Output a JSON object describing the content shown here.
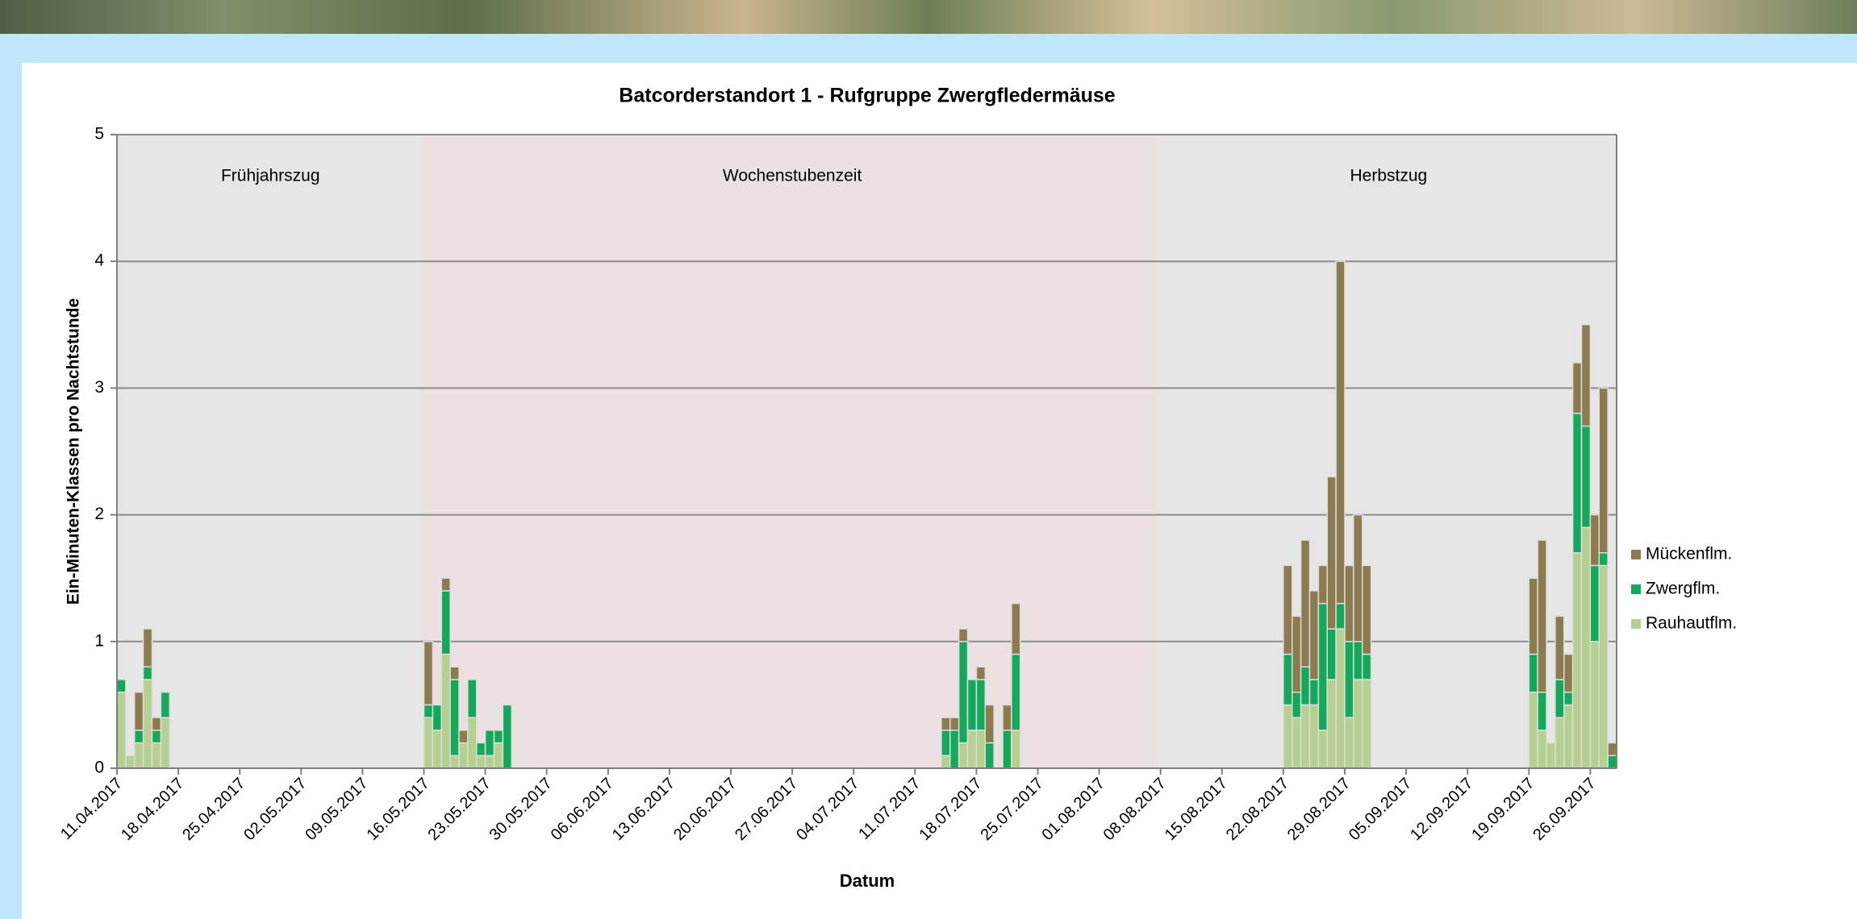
{
  "chart_data": {
    "type": "stacked_bar",
    "title": "Batcorderstandort 1 - Rufgruppe Zwergfledermäuse",
    "x_label": "Datum",
    "y_label": "Ein-Minuten-Klassen  pro Nachtstunde",
    "xlim": [
      "11.04.2017",
      "29.09.2017"
    ],
    "xticks": [
      "11.04.2017",
      "18.04.2017",
      "25.04.2017",
      "02.05.2017",
      "09.05.2017",
      "16.05.2017",
      "23.05.2017",
      "30.05.2017",
      "06.06.2017",
      "13.06.2017",
      "20.06.2017",
      "27.06.2017",
      "04.07.2017",
      "11.07.2017",
      "18.07.2017",
      "25.07.2017",
      "01.08.2017",
      "08.08.2017",
      "15.08.2017",
      "22.08.2017",
      "29.08.2017",
      "05.09.2017",
      "12.09.2017",
      "19.09.2017",
      "26.09.2017"
    ],
    "ylim": [
      0,
      5
    ],
    "yticks": [
      0,
      1,
      2,
      3,
      4,
      5
    ],
    "grid": true,
    "legend": "right",
    "periods": [
      {
        "label": "Frühjahrszug",
        "start": "11.04.2017",
        "end": "16.05.2017",
        "color": "#e6e6e6"
      },
      {
        "label": "Wochenstubenzeit",
        "start": "16.05.2017",
        "end": "08.08.2017",
        "color": "#ebe1e1"
      },
      {
        "label": "Herbstzug",
        "start": "08.08.2017",
        "end": "29.09.2017",
        "color": "#e6e6e6"
      }
    ],
    "x": [
      "11.04.2017",
      "12.04.2017",
      "13.04.2017",
      "14.04.2017",
      "15.04.2017",
      "16.04.2017",
      "16.05.2017",
      "17.05.2017",
      "18.05.2017",
      "19.05.2017",
      "20.05.2017",
      "21.05.2017",
      "22.05.2017",
      "23.05.2017",
      "24.05.2017",
      "25.05.2017",
      "14.07.2017",
      "15.07.2017",
      "16.07.2017",
      "17.07.2017",
      "18.07.2017",
      "19.07.2017",
      "21.07.2017",
      "22.07.2017",
      "22.08.2017",
      "23.08.2017",
      "24.08.2017",
      "25.08.2017",
      "26.08.2017",
      "27.08.2017",
      "28.08.2017",
      "29.08.2017",
      "30.08.2017",
      "31.08.2017",
      "19.09.2017",
      "20.09.2017",
      "21.09.2017",
      "22.09.2017",
      "23.09.2017",
      "24.09.2017",
      "25.09.2017",
      "26.09.2017",
      "27.09.2017",
      "28.09.2017"
    ],
    "series": [
      {
        "name": "Mückenflm.",
        "color": "#8b7b4f",
        "values": [
          0,
          0,
          0.3,
          0.3,
          0.1,
          0,
          0.5,
          0,
          0.1,
          0.1,
          0.1,
          0,
          0,
          0,
          0,
          0,
          0.1,
          0.1,
          0.1,
          0,
          0.1,
          0.3,
          0.2,
          0.4,
          0.7,
          0.6,
          1.0,
          0.7,
          0.3,
          1.2,
          2.7,
          0.6,
          1.0,
          0.7,
          0.6,
          1.2,
          0,
          0.5,
          0.3,
          0.4,
          0.8,
          0.4,
          1.3,
          0.1
        ]
      },
      {
        "name": "Zwergflm.",
        "color": "#14a85a",
        "values": [
          0.1,
          0,
          0.1,
          0.1,
          0.1,
          0.2,
          0.1,
          0.2,
          0.5,
          0.6,
          0,
          0.3,
          0.1,
          0.2,
          0.1,
          0.5,
          0.2,
          0.3,
          0.8,
          0.4,
          0.4,
          0.2,
          0.3,
          0.6,
          0.4,
          0.2,
          0.3,
          0.2,
          1.0,
          0.4,
          0.2,
          0.6,
          0.3,
          0.2,
          0.3,
          0.3,
          0,
          0.3,
          0.1,
          1.1,
          0.8,
          0.6,
          0.1,
          0.1
        ]
      },
      {
        "name": "Rauhautflm.",
        "color": "#b5d091",
        "values": [
          0.6,
          0.1,
          0.2,
          0.7,
          0.2,
          0.4,
          0.4,
          0.3,
          0.9,
          0.1,
          0.2,
          0.4,
          0.1,
          0.1,
          0.2,
          0,
          0.1,
          0,
          0.2,
          0.3,
          0.3,
          0,
          0,
          0.3,
          0.5,
          0.4,
          0.5,
          0.5,
          0.3,
          0.7,
          1.1,
          0.4,
          0.7,
          0.7,
          0.6,
          0.3,
          0.2,
          0.4,
          0.5,
          1.7,
          1.9,
          1.0,
          1.6,
          0
        ]
      }
    ]
  }
}
